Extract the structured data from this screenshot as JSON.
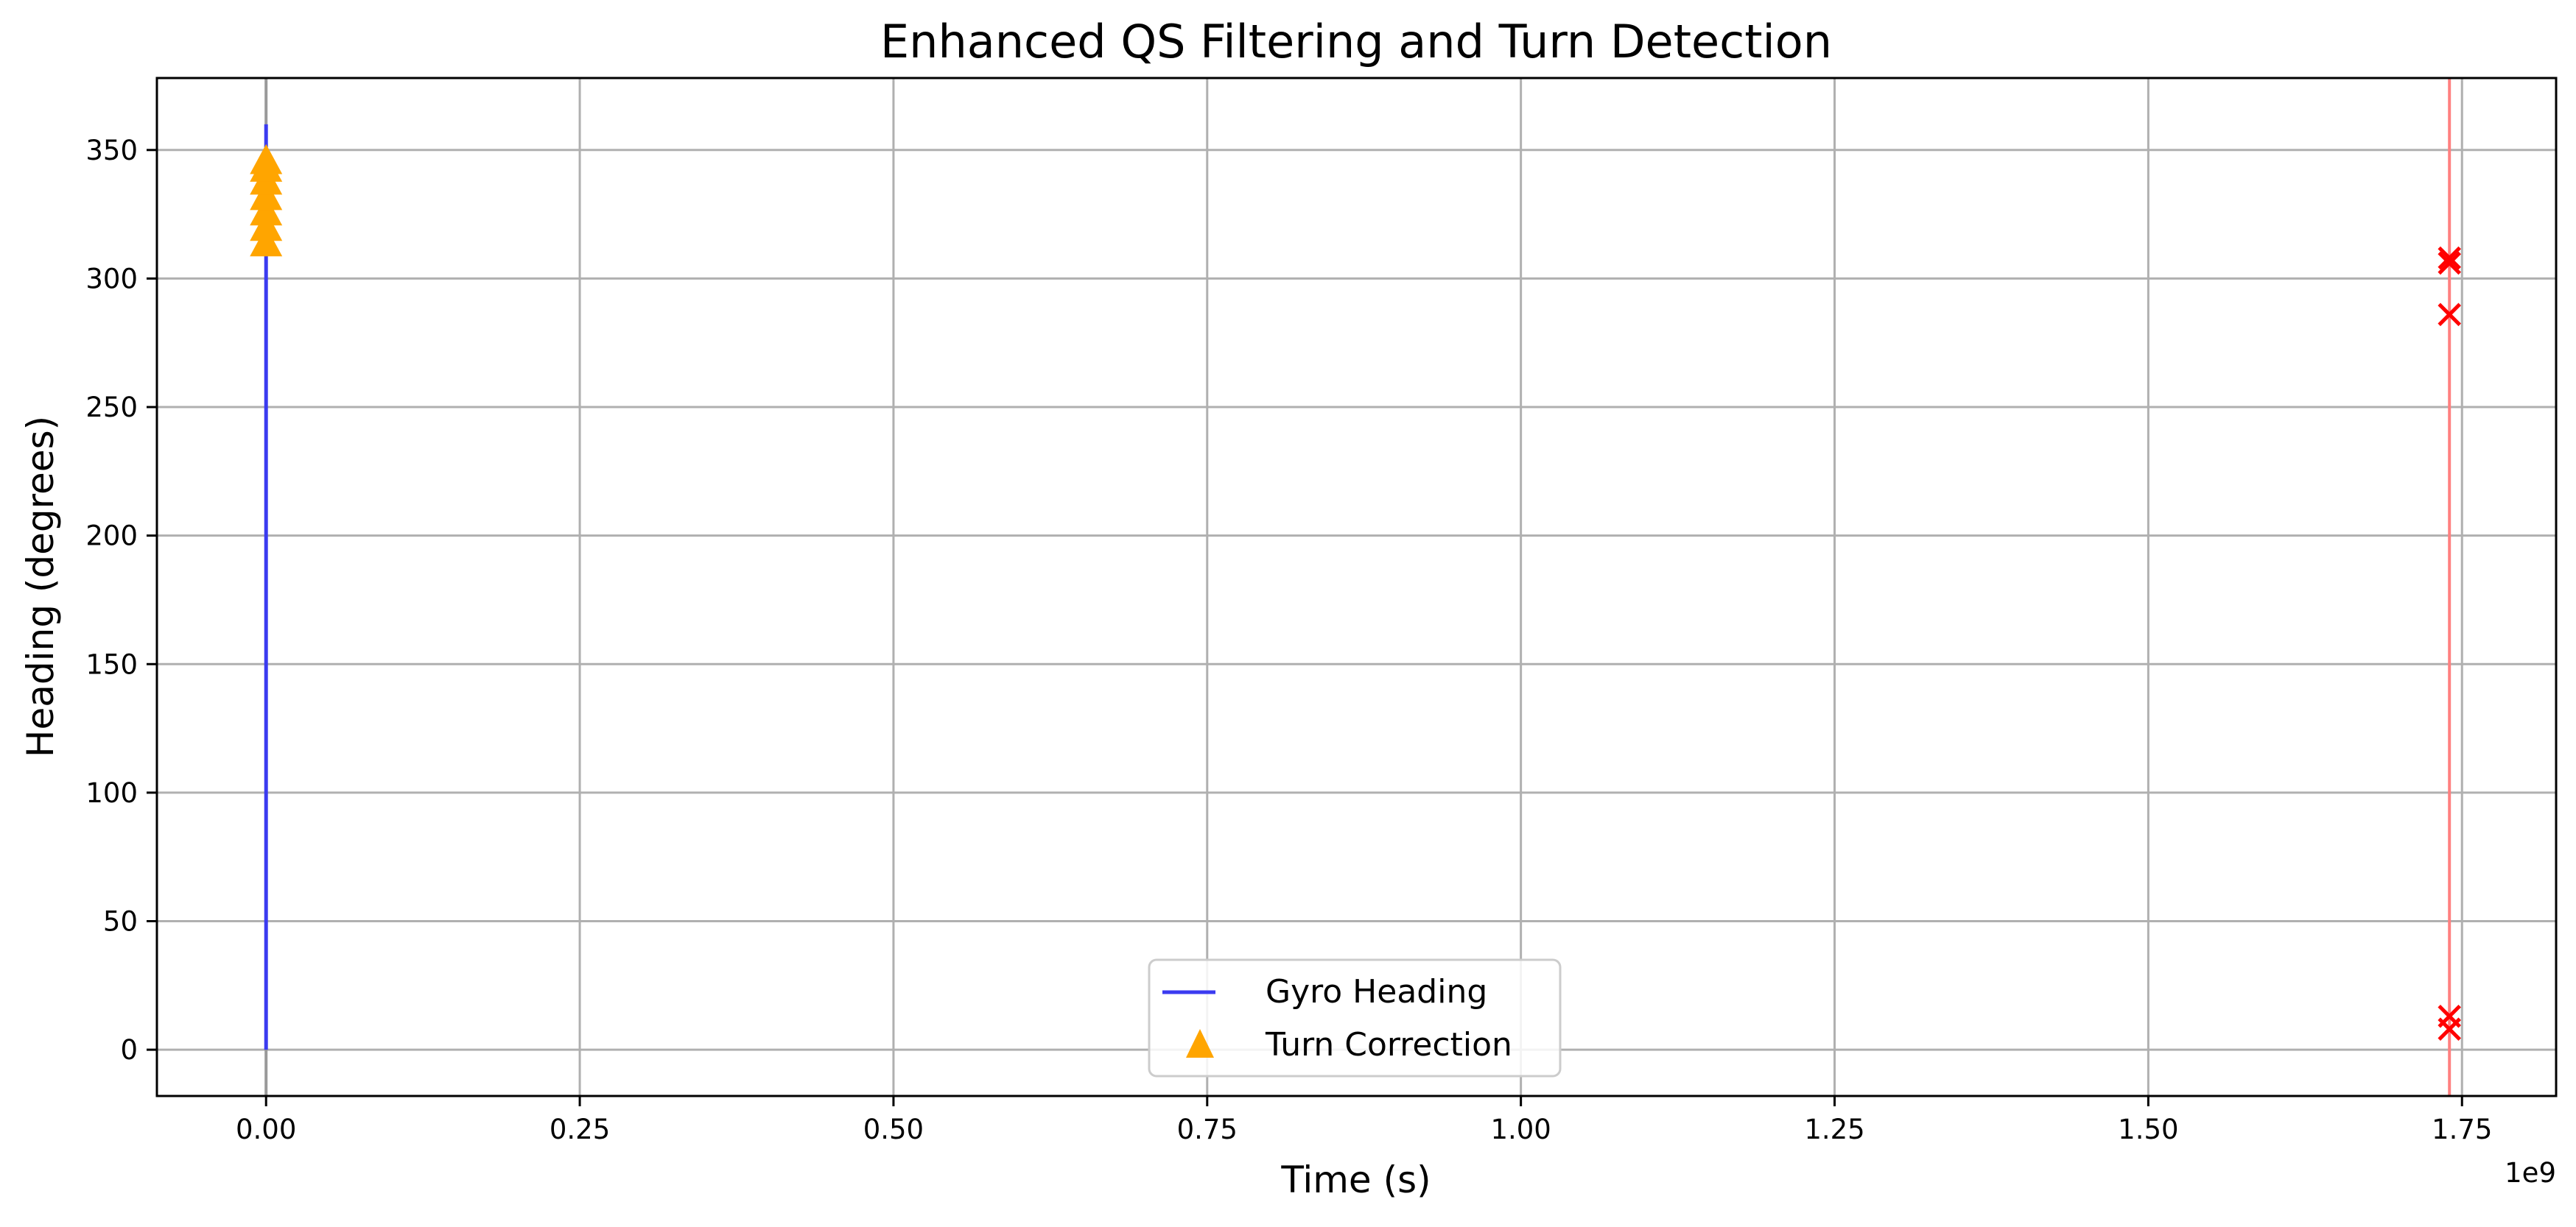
{
  "chart_data": {
    "type": "line",
    "title": "Enhanced QS Filtering and Turn Detection",
    "xlabel": "Time (s)",
    "ylabel": "Heading (degrees)",
    "x_offset_label": "1e9",
    "xlim": [
      -0.087,
      1.825
    ],
    "ylim": [
      -18,
      378
    ],
    "x_ticks": [
      0,
      0.25,
      0.5,
      0.75,
      1.0,
      1.25,
      1.5,
      1.75
    ],
    "x_tick_labels": [
      "0.00",
      "0.25",
      "0.50",
      "0.75",
      "1.00",
      "1.25",
      "1.50",
      "1.75"
    ],
    "y_ticks": [
      0,
      50,
      100,
      150,
      200,
      250,
      300,
      350
    ],
    "y_tick_labels": [
      "0",
      "50",
      "100",
      "150",
      "200",
      "250",
      "300",
      "350"
    ],
    "grid": true,
    "legend_position": "lower-center",
    "legend": [
      {
        "label": "Gyro Heading",
        "marker": "line",
        "color": "#3b3bf0"
      },
      {
        "label": "Turn Correction",
        "marker": "triangle",
        "color": "#ffa500"
      }
    ],
    "series": [
      {
        "name": "Gyro Heading",
        "kind": "line",
        "color": "#3b3bf0",
        "x": [
          0,
          0,
          0,
          0
        ],
        "y": [
          0,
          360,
          30,
          320
        ]
      },
      {
        "name": "Turn Correction",
        "kind": "scatter",
        "marker": "triangle",
        "color": "#ffa500",
        "x": [
          0,
          0,
          0,
          0,
          0,
          0,
          0
        ],
        "y": [
          314,
          320,
          326,
          332,
          338,
          343,
          346
        ]
      },
      {
        "kind": "scatter",
        "marker": "x",
        "color": "#ff0000",
        "x": [
          1.74,
          1.74,
          1.74,
          1.74,
          1.74
        ],
        "y": [
          308,
          306,
          286,
          13,
          8
        ]
      }
    ],
    "vlines": [
      {
        "x": 0,
        "color": "#9a9a9a"
      },
      {
        "x": 1.74,
        "color": "#ff8080"
      }
    ]
  }
}
